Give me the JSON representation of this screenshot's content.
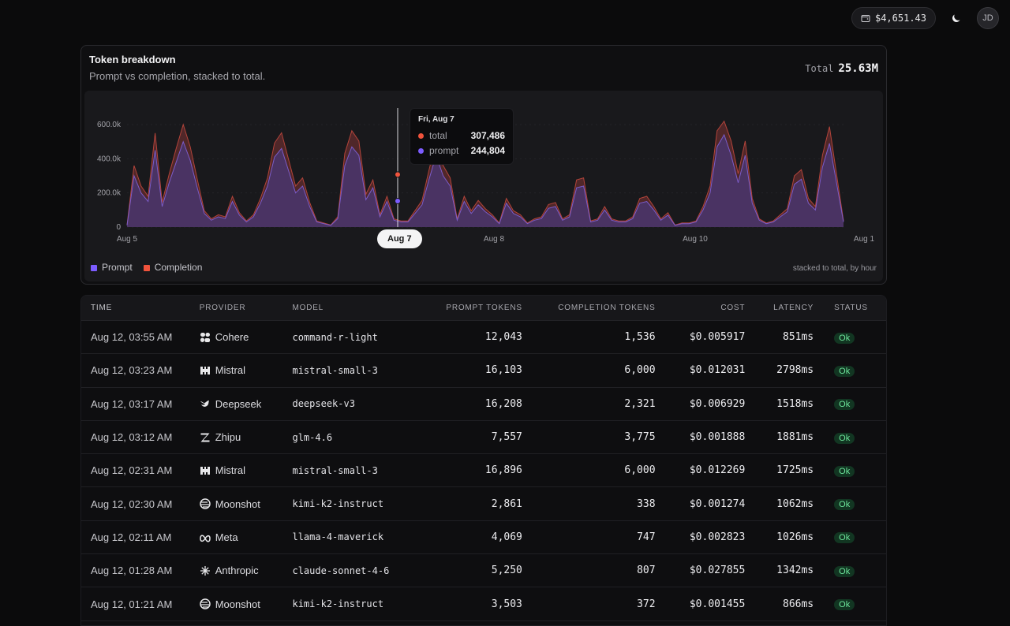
{
  "header": {
    "balance": "$4,651.43",
    "avatar_initials": "JD",
    "theme_icon": "moon-icon",
    "balance_icon": "wallet-icon"
  },
  "card": {
    "title": "Token breakdown",
    "subtitle": "Prompt vs completion, stacked to total.",
    "total_label": "Total",
    "total_value": "25.63M",
    "legend_note": "stacked to total, by hour",
    "legend": [
      {
        "label": "Prompt",
        "color": "#7c5cff"
      },
      {
        "label": "Completion",
        "color": "#f0533c"
      }
    ],
    "tooltip": {
      "date": "Fri, Aug 7",
      "total_label": "total",
      "total_value": "307,486",
      "prompt_label": "prompt",
      "prompt_value": "244,804"
    },
    "hover_label": "Aug 7"
  },
  "chart_data": {
    "type": "area",
    "y_ticks": [
      "600.0k",
      "400.0k",
      "200.0k",
      "0"
    ],
    "x_ticks": [
      "Aug 5",
      "Aug 8",
      "Aug 10",
      "Aug 1"
    ],
    "ylim": [
      0,
      600000
    ],
    "series": [
      {
        "name": "Prompt",
        "values": [
          10,
          300,
          200,
          150,
          450,
          120,
          260,
          380,
          500,
          390,
          230,
          80,
          40,
          60,
          50,
          150,
          70,
          30,
          60,
          140,
          240,
          410,
          460,
          330,
          200,
          240,
          120,
          30,
          20,
          10,
          50,
          360,
          470,
          420,
          160,
          230,
          60,
          150,
          40,
          30,
          30,
          80,
          130,
          280,
          420,
          300,
          240,
          40,
          150,
          80,
          130,
          90,
          60,
          20,
          140,
          80,
          60,
          20,
          40,
          50,
          110,
          120,
          40,
          60,
          230,
          240,
          30,
          40,
          100,
          40,
          30,
          30,
          50,
          140,
          150,
          100,
          40,
          70,
          10,
          20,
          20,
          30,
          100,
          200,
          470,
          540,
          420,
          260,
          420,
          140,
          40,
          20,
          30,
          60,
          90,
          250,
          280,
          140,
          100,
          350,
          490,
          260,
          30
        ]
      },
      {
        "name": "Completion",
        "values": [
          12,
          360,
          240,
          180,
          550,
          145,
          310,
          460,
          600,
          470,
          280,
          96,
          48,
          72,
          60,
          180,
          84,
          36,
          72,
          168,
          288,
          492,
          552,
          396,
          240,
          288,
          144,
          36,
          24,
          12,
          60,
          432,
          564,
          504,
          192,
          276,
          72,
          180,
          48,
          36,
          36,
          96,
          156,
          336,
          504,
          360,
          288,
          48,
          180,
          96,
          156,
          108,
          72,
          24,
          168,
          96,
          72,
          24,
          48,
          60,
          132,
          144,
          48,
          72,
          276,
          288,
          36,
          48,
          120,
          48,
          36,
          36,
          60,
          168,
          180,
          120,
          48,
          84,
          12,
          24,
          24,
          36,
          120,
          240,
          564,
          620,
          504,
          312,
          504,
          168,
          48,
          24,
          36,
          72,
          108,
          300,
          336,
          168,
          120,
          420,
          588,
          312,
          36
        ]
      }
    ]
  },
  "table": {
    "headers": [
      "Time",
      "Provider",
      "Model",
      "Prompt Tokens",
      "Completion Tokens",
      "Cost",
      "Latency",
      "Status"
    ],
    "rows": [
      {
        "time": "Aug 12, 03:55 AM",
        "provider": "Cohere",
        "icon": "cohere-icon",
        "model": "command-r-light",
        "prompt": "12,043",
        "completion": "1,536",
        "cost": "$0.005917",
        "latency": "851ms",
        "status": "Ok"
      },
      {
        "time": "Aug 12, 03:23 AM",
        "provider": "Mistral",
        "icon": "mistral-icon",
        "model": "mistral-small-3",
        "prompt": "16,103",
        "completion": "6,000",
        "cost": "$0.012031",
        "latency": "2798ms",
        "status": "Ok"
      },
      {
        "time": "Aug 12, 03:17 AM",
        "provider": "Deepseek",
        "icon": "deepseek-icon",
        "model": "deepseek-v3",
        "prompt": "16,208",
        "completion": "2,321",
        "cost": "$0.006929",
        "latency": "1518ms",
        "status": "Ok"
      },
      {
        "time": "Aug 12, 03:12 AM",
        "provider": "Zhipu",
        "icon": "zhipu-icon",
        "model": "glm-4.6",
        "prompt": "7,557",
        "completion": "3,775",
        "cost": "$0.001888",
        "latency": "1881ms",
        "status": "Ok"
      },
      {
        "time": "Aug 12, 02:31 AM",
        "provider": "Mistral",
        "icon": "mistral-icon",
        "model": "mistral-small-3",
        "prompt": "16,896",
        "completion": "6,000",
        "cost": "$0.012269",
        "latency": "1725ms",
        "status": "Ok"
      },
      {
        "time": "Aug 12, 02:30 AM",
        "provider": "Moonshot",
        "icon": "moonshot-icon",
        "model": "kimi-k2-instruct",
        "prompt": "2,861",
        "completion": "338",
        "cost": "$0.001274",
        "latency": "1062ms",
        "status": "Ok"
      },
      {
        "time": "Aug 12, 02:11 AM",
        "provider": "Meta",
        "icon": "meta-icon",
        "model": "llama-4-maverick",
        "prompt": "4,069",
        "completion": "747",
        "cost": "$0.002823",
        "latency": "1026ms",
        "status": "Ok"
      },
      {
        "time": "Aug 12, 01:28 AM",
        "provider": "Anthropic",
        "icon": "anthropic-icon",
        "model": "claude-sonnet-4-6",
        "prompt": "5,250",
        "completion": "807",
        "cost": "$0.027855",
        "latency": "1342ms",
        "status": "Ok"
      },
      {
        "time": "Aug 12, 01:21 AM",
        "provider": "Moonshot",
        "icon": "moonshot-icon",
        "model": "kimi-k2-instruct",
        "prompt": "3,503",
        "completion": "372",
        "cost": "$0.001455",
        "latency": "866ms",
        "status": "Ok"
      }
    ]
  }
}
